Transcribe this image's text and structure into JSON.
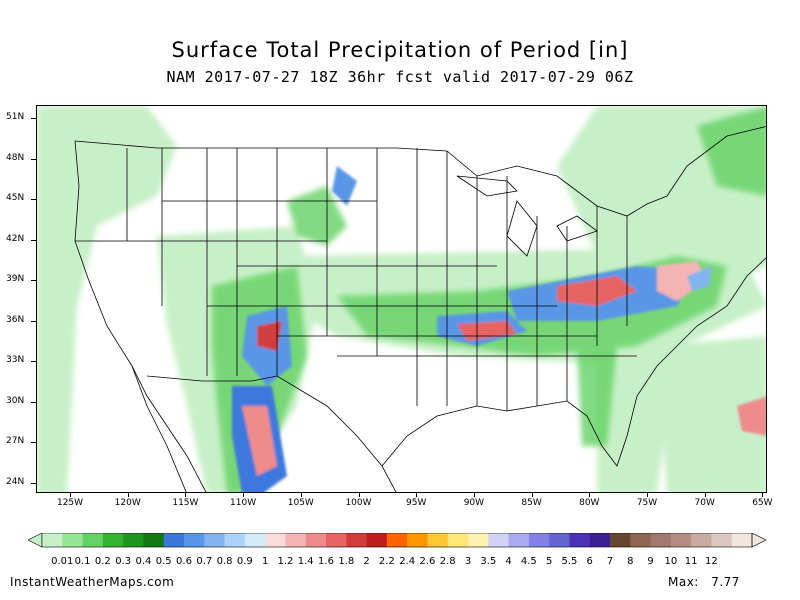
{
  "title": "Surface Total Precipitation of Period [in]",
  "subtitle": "NAM 2017-07-27 18Z 36hr fcst valid 2017-07-29 06Z",
  "map": {
    "latitudes": [
      "51N",
      "48N",
      "45N",
      "42N",
      "39N",
      "36N",
      "33N",
      "30N",
      "27N",
      "24N"
    ],
    "longitudes": [
      "125W",
      "120W",
      "115W",
      "110W",
      "105W",
      "100W",
      "95W",
      "90W",
      "85W",
      "80W",
      "75W",
      "70W",
      "65W"
    ]
  },
  "legend": {
    "labels": [
      "0.01",
      "0.1",
      "0.2",
      "0.3",
      "0.4",
      "0.5",
      "0.6",
      "0.7",
      "0.8",
      "0.9",
      "1",
      "1.2",
      "1.4",
      "1.6",
      "1.8",
      "2",
      "2.2",
      "2.4",
      "2.6",
      "2.8",
      "3",
      "3.5",
      "4",
      "4.5",
      "5",
      "5.5",
      "6",
      "7",
      "8",
      "9",
      "10",
      "11",
      "12"
    ],
    "colors": [
      "#c8f0c8",
      "#96e696",
      "#64d264",
      "#32b432",
      "#1e961e",
      "#147814",
      "#3c78dc",
      "#5a96e6",
      "#82b4f0",
      "#aad2fa",
      "#d2ebfa",
      "#fadcdc",
      "#f5b4b4",
      "#ee8c8c",
      "#e66464",
      "#d23c3c",
      "#be1e1e",
      "#ff6400",
      "#ff9600",
      "#ffc832",
      "#ffe678",
      "#fff0b4",
      "#d2d2f5",
      "#aaaaf0",
      "#8282e6",
      "#6464d2",
      "#4b32b4",
      "#3c1e96",
      "#644632",
      "#8c6450",
      "#a0786e",
      "#b48c82",
      "#c8aaa0",
      "#dcc8be",
      "#f0e6dc"
    ]
  },
  "footer": {
    "site": "InstantWeatherMaps.com",
    "max_label": "Max:",
    "max_value": "7.77"
  }
}
